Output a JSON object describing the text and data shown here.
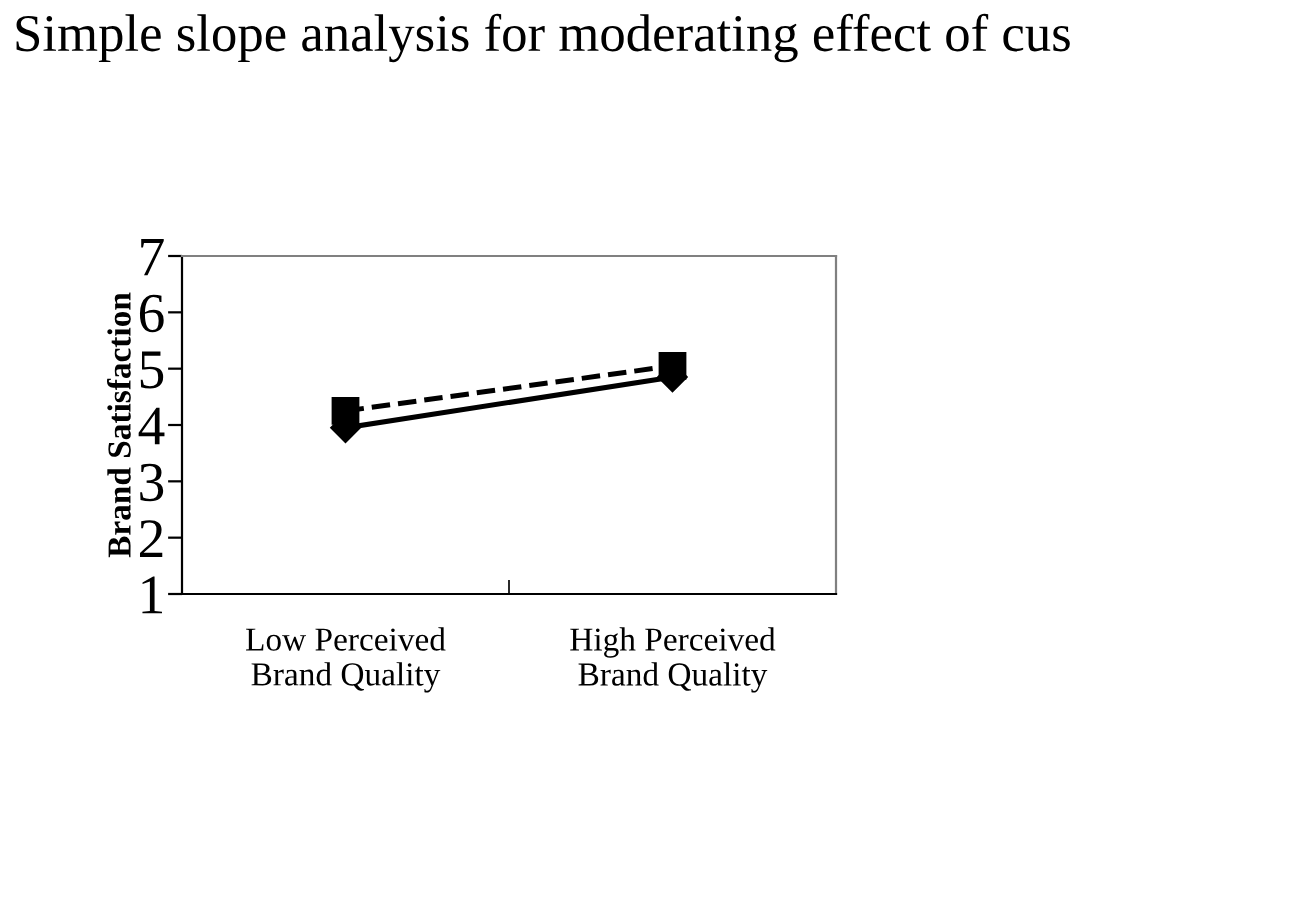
{
  "chart_data": {
    "type": "line",
    "title": "Simple slope analysis for moderating effect of cus",
    "ylabel": "Brand Satisfaction",
    "categories": [
      "Low Perceived\nBrand Quality",
      "High Perceived\nBrand Quality"
    ],
    "series": [
      {
        "color": "#000000",
        "values": [
          3.95,
          4.85
        ],
        "marker": "diamond",
        "line_style": "solid"
      },
      {
        "color": "#000000",
        "values": [
          4.25,
          5.05
        ],
        "marker": "square",
        "line_style": "dashed"
      }
    ],
    "ylim": [
      1,
      7
    ],
    "yticks": [
      1,
      2,
      3,
      4,
      5,
      6,
      7
    ],
    "grid": false,
    "legend": false
  }
}
